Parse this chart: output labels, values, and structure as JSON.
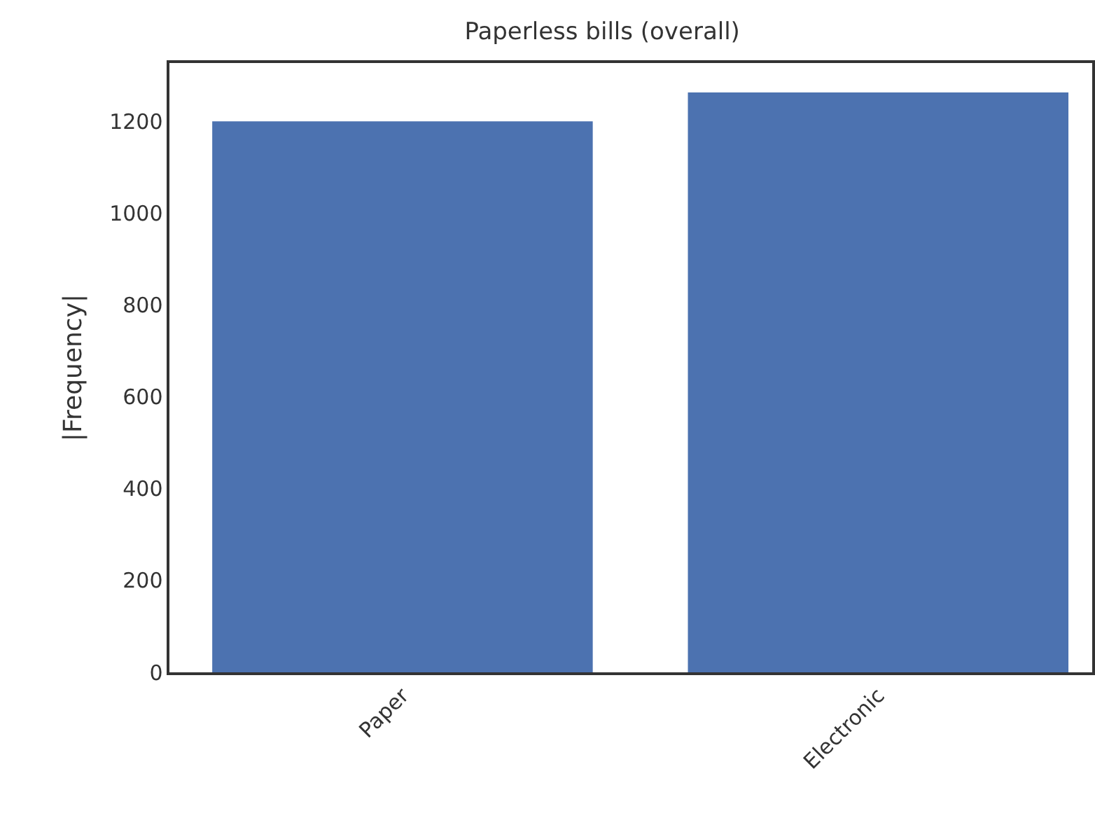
{
  "chart_data": {
    "type": "bar",
    "title": "Paperless bills (overall)",
    "ylabel": "|Frequency|",
    "categories": [
      "Paper",
      "Electronic"
    ],
    "values": [
      1200,
      1263
    ],
    "color": "#4c72b0",
    "ylim": [
      0,
      1327
    ],
    "yticks": [
      0,
      200,
      400,
      600,
      800,
      1000,
      1200
    ]
  }
}
